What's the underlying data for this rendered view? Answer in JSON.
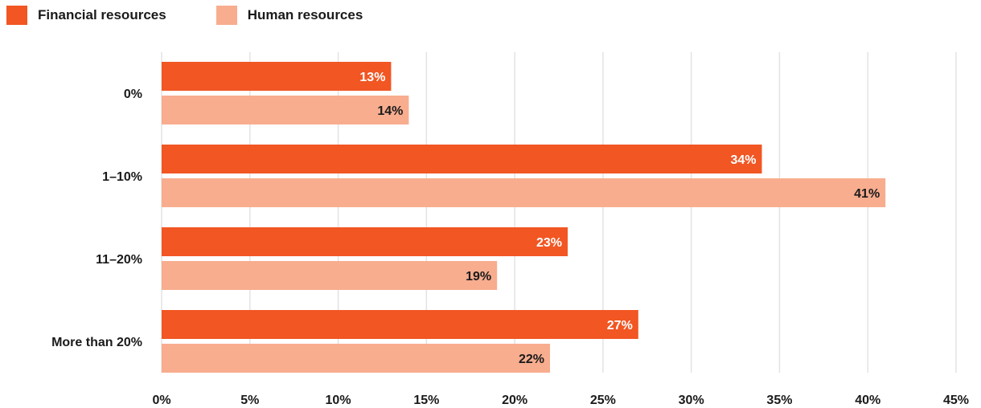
{
  "chart_data": {
    "type": "bar",
    "orientation": "horizontal",
    "categories": [
      "0%",
      "1–10%",
      "11–20%",
      "More than 20%"
    ],
    "series": [
      {
        "name": "Financial resources",
        "values": [
          13,
          34,
          23,
          27
        ],
        "color": "#f15623",
        "label_color": "#ffffff"
      },
      {
        "name": "Human resources",
        "values": [
          14,
          41,
          19,
          22
        ],
        "color": "#f8ad8f",
        "label_color": "#1a1a1a"
      }
    ],
    "value_suffix": "%",
    "xlim": [
      0,
      45
    ],
    "xticks": [
      0,
      5,
      10,
      15,
      20,
      25,
      30,
      35,
      40,
      45
    ],
    "xtick_labels": [
      "0%",
      "5%",
      "10%",
      "15%",
      "20%",
      "25%",
      "30%",
      "35%",
      "40%",
      "45%"
    ],
    "grid": true,
    "grid_color": "#e3e3e3",
    "legend_position": "top-left",
    "title": "",
    "xlabel": "",
    "ylabel": ""
  }
}
